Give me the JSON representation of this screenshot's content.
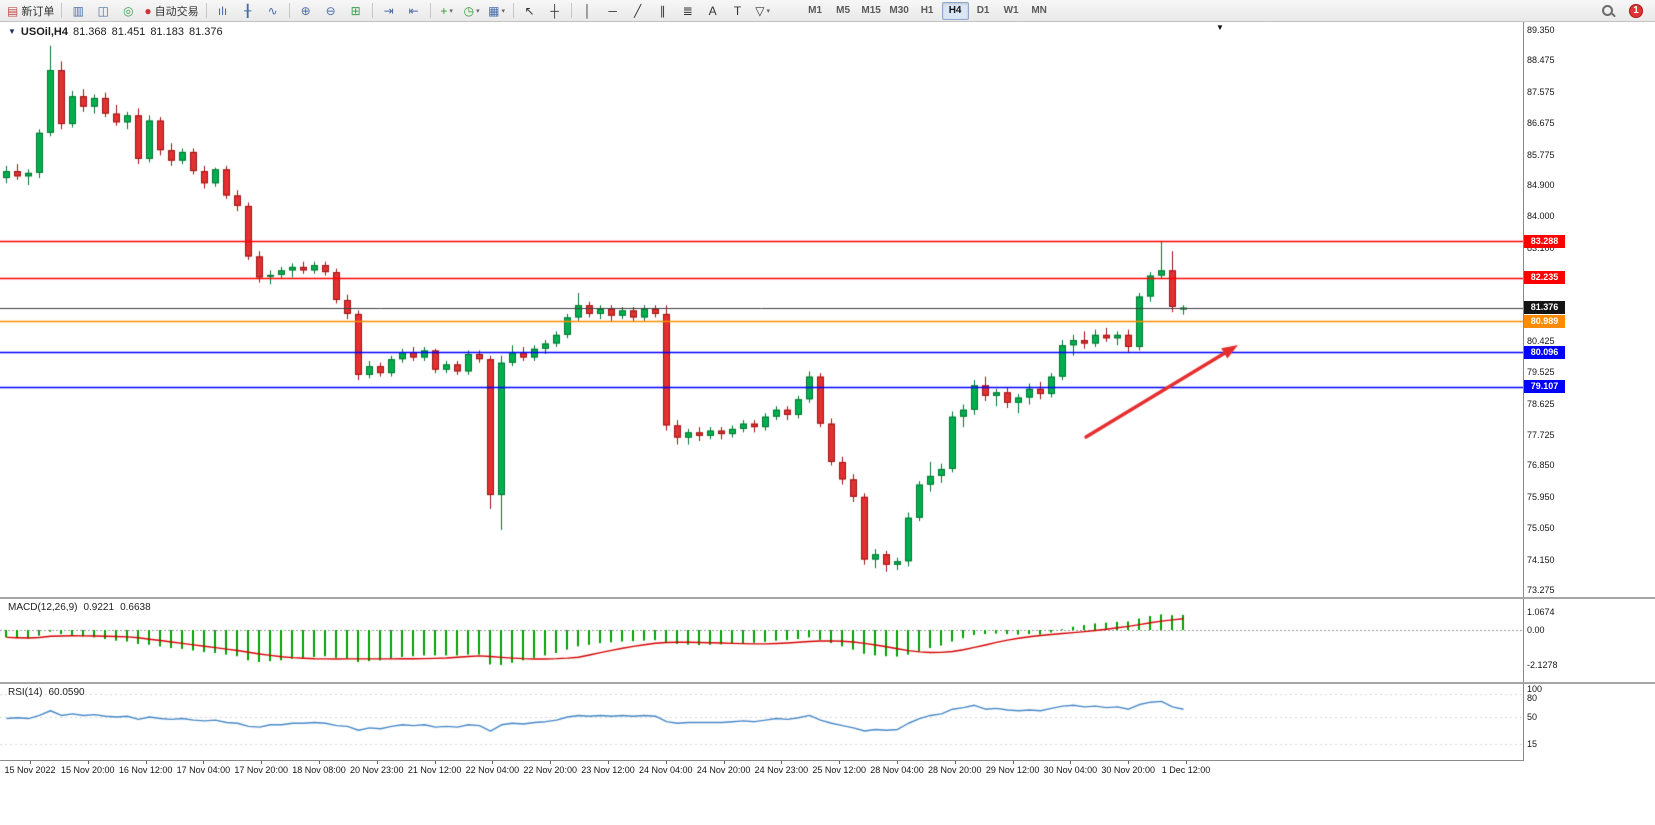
{
  "icons": {
    "collapse": "▼",
    "end_marker": "▼",
    "caret": "▾"
  },
  "toolbar": {
    "notification_count": "1",
    "timeframes": [
      "M1",
      "M5",
      "M15",
      "M30",
      "H1",
      "H4",
      "D1",
      "W1",
      "MN"
    ],
    "active_timeframe": "H4",
    "items": [
      {
        "name": "new-order-button",
        "icon": "new-order-icon",
        "glyph": "▤",
        "color": "#c0504d",
        "label": "新订单"
      },
      {
        "sep": true
      },
      {
        "name": "market-watch-button",
        "icon": "market-watch-icon",
        "glyph": "▥",
        "color": "#4a6da7"
      },
      {
        "name": "data-window-button",
        "icon": "data-window-icon",
        "glyph": "◫",
        "color": "#4a6da7"
      },
      {
        "name": "navigator-button",
        "icon": "navigator-icon",
        "glyph": "◎",
        "color": "#3f9d4f"
      },
      {
        "name": "autotrading-button",
        "icon": "autotrading-icon",
        "glyph": "●",
        "color": "#cf3333",
        "label": "自动交易"
      },
      {
        "sep": true
      },
      {
        "name": "bar-chart-button",
        "icon": "bar-chart-icon",
        "glyph": "ılı",
        "color": "#4a6da7"
      },
      {
        "name": "candlestick-button",
        "icon": "candlestick-icon",
        "glyph": "╂",
        "color": "#4a6da7"
      },
      {
        "name": "line-chart-button",
        "icon": "line-chart-icon",
        "glyph": "∿",
        "color": "#4a6da7"
      },
      {
        "sep": true
      },
      {
        "name": "zoom-in-button",
        "icon": "zoom-in-icon",
        "glyph": "⊕",
        "color": "#4a6da7"
      },
      {
        "name": "zoom-out-button",
        "icon": "zoom-out-icon",
        "glyph": "⊖",
        "color": "#4a6da7"
      },
      {
        "name": "tile-windows-button",
        "icon": "tile-windows-icon",
        "glyph": "⊞",
        "color": "#3f9d4f"
      },
      {
        "sep": true
      },
      {
        "name": "auto-scroll-button",
        "icon": "auto-scroll-icon",
        "glyph": "⇥",
        "color": "#4a6da7"
      },
      {
        "name": "chart-shift-button",
        "icon": "chart-shift-icon",
        "glyph": "⇤",
        "color": "#4a6da7"
      },
      {
        "sep": true
      },
      {
        "name": "indicators-button",
        "icon": "indicators-icon",
        "glyph": "+",
        "color": "#2f9e2f",
        "dropdown": true
      },
      {
        "name": "periods-button",
        "icon": "periods-icon",
        "glyph": "◷",
        "color": "#2f9e2f",
        "dropdown": true
      },
      {
        "name": "templates-button",
        "icon": "templates-icon",
        "glyph": "▦",
        "color": "#4a6da7",
        "dropdown": true
      },
      {
        "sep": true
      },
      {
        "name": "cursor-button",
        "icon": "cursor-icon",
        "glyph": "↖",
        "color": "#333333"
      },
      {
        "name": "crosshair-button",
        "icon": "crosshair-icon",
        "glyph": "┼",
        "color": "#333333"
      },
      {
        "sep": true
      },
      {
        "name": "vertical-line-button",
        "icon": "vertical-line-icon",
        "glyph": "│",
        "color": "#333333"
      },
      {
        "name": "horizontal-line-button",
        "icon": "horizontal-line-icon",
        "glyph": "─",
        "color": "#333333"
      },
      {
        "name": "trendline-button",
        "icon": "trendline-icon",
        "glyph": "╱",
        "color": "#333333"
      },
      {
        "name": "channel-button",
        "icon": "channel-icon",
        "glyph": "∥",
        "color": "#333333"
      },
      {
        "name": "fibonacci-button",
        "icon": "fibonacci-icon",
        "glyph": "≣",
        "color": "#333333"
      },
      {
        "name": "text-button",
        "icon": "text-icon",
        "glyph": "A",
        "color": "#333333"
      },
      {
        "name": "text-label-button",
        "icon": "text-label-icon",
        "glyph": "T",
        "color": "#333333"
      },
      {
        "name": "arrows-button",
        "icon": "arrows-icon",
        "glyph": "▽",
        "color": "#333333",
        "dropdown": true
      }
    ]
  },
  "chart": {
    "header": {
      "symbol": "USOil,H4",
      "open": "81.368",
      "high": "81.451",
      "low": "81.183",
      "close": "81.376"
    },
    "price_scale_labels": [
      "89.350",
      "88.475",
      "87.575",
      "86.675",
      "85.775",
      "84.900",
      "84.000",
      "83.100",
      "82.200",
      "81.300",
      "80.425",
      "79.525",
      "78.625",
      "77.725",
      "76.850",
      "75.950",
      "75.050",
      "74.150",
      "73.275"
    ],
    "levels": [
      {
        "price": 83.288,
        "label": "83.288",
        "color": "#ff0000"
      },
      {
        "price": 82.235,
        "label": "82.235",
        "color": "#ff0000"
      },
      {
        "price": 80.989,
        "label": "80.989",
        "color": "#ff8c00"
      },
      {
        "price": 80.096,
        "label": "80.096",
        "color": "#0000ff"
      },
      {
        "price": 79.107,
        "label": "79.107",
        "color": "#0000ff"
      }
    ],
    "current_price": {
      "price": 81.376,
      "label": "81.376",
      "color": "#141414"
    },
    "colors": {
      "bull": "#00b050",
      "bull_edge": "#00752f",
      "bear": "#e33030",
      "bear_edge": "#9c1414",
      "macd_histogram": "#00a000",
      "macd_signal": "#d40000",
      "rsi_line": "#4788c7",
      "arrow": "#e62e2e"
    },
    "arrow": {
      "from": [
        1086,
        415
      ],
      "to": [
        1238,
        323
      ]
    }
  },
  "chart_data": {
    "type": "candlestick",
    "symbol": "USOil",
    "timeframe": "H4",
    "price_range": [
      73.275,
      89.35
    ],
    "x_labels": [
      "15 Nov 2022",
      "15 Nov 20:00",
      "16 Nov 12:00",
      "17 Nov 04:00",
      "17 Nov 20:00",
      "18 Nov 08:00",
      "20 Nov 23:00",
      "21 Nov 12:00",
      "22 Nov 04:00",
      "22 Nov 20:00",
      "23 Nov 12:00",
      "24 Nov 04:00",
      "24 Nov 20:00",
      "24 Nov 23:00",
      "25 Nov 12:00",
      "28 Nov 04:00",
      "28 Nov 20:00",
      "29 Nov 12:00",
      "30 Nov 04:00",
      "30 Nov 20:00",
      "1 Dec 12:00"
    ],
    "ohlc": [
      [
        85.1,
        85.45,
        84.95,
        85.3
      ],
      [
        85.3,
        85.5,
        85.05,
        85.15
      ],
      [
        85.15,
        85.35,
        84.9,
        85.25
      ],
      [
        85.25,
        86.5,
        85.1,
        86.4
      ],
      [
        86.4,
        88.9,
        86.3,
        88.2
      ],
      [
        88.2,
        88.45,
        86.5,
        86.65
      ],
      [
        86.65,
        87.6,
        86.55,
        87.45
      ],
      [
        87.45,
        87.65,
        87.0,
        87.15
      ],
      [
        87.15,
        87.5,
        86.95,
        87.4
      ],
      [
        87.4,
        87.55,
        86.85,
        86.95
      ],
      [
        86.95,
        87.2,
        86.6,
        86.7
      ],
      [
        86.7,
        87.0,
        86.5,
        86.9
      ],
      [
        86.9,
        87.1,
        85.5,
        85.65
      ],
      [
        85.65,
        86.9,
        85.55,
        86.75
      ],
      [
        86.75,
        86.85,
        85.75,
        85.9
      ],
      [
        85.9,
        86.1,
        85.45,
        85.6
      ],
      [
        85.6,
        85.95,
        85.5,
        85.85
      ],
      [
        85.85,
        85.95,
        85.2,
        85.3
      ],
      [
        85.3,
        85.45,
        84.8,
        84.95
      ],
      [
        84.95,
        85.4,
        84.85,
        85.35
      ],
      [
        85.35,
        85.45,
        84.5,
        84.6
      ],
      [
        84.6,
        84.75,
        84.15,
        84.3
      ],
      [
        84.3,
        84.4,
        82.75,
        82.85
      ],
      [
        82.85,
        83.0,
        82.1,
        82.25
      ],
      [
        82.3,
        82.45,
        82.05,
        82.32
      ],
      [
        82.32,
        82.55,
        82.2,
        82.45
      ],
      [
        82.45,
        82.65,
        82.25,
        82.55
      ],
      [
        82.55,
        82.7,
        82.35,
        82.45
      ],
      [
        82.45,
        82.7,
        82.35,
        82.6
      ],
      [
        82.6,
        82.7,
        82.3,
        82.4
      ],
      [
        82.4,
        82.5,
        81.5,
        81.6
      ],
      [
        81.6,
        81.75,
        81.05,
        81.2
      ],
      [
        81.2,
        81.3,
        79.3,
        79.45
      ],
      [
        79.45,
        79.85,
        79.35,
        79.7
      ],
      [
        79.7,
        79.8,
        79.4,
        79.5
      ],
      [
        79.5,
        80.0,
        79.4,
        79.9
      ],
      [
        79.9,
        80.2,
        79.8,
        80.1
      ],
      [
        80.1,
        80.25,
        79.85,
        79.95
      ],
      [
        79.95,
        80.25,
        79.85,
        80.15
      ],
      [
        80.15,
        80.2,
        79.5,
        79.6
      ],
      [
        79.6,
        79.85,
        79.5,
        79.75
      ],
      [
        79.75,
        79.85,
        79.45,
        79.55
      ],
      [
        79.55,
        80.15,
        79.45,
        80.05
      ],
      [
        80.05,
        80.15,
        79.8,
        79.9
      ],
      [
        79.9,
        80.0,
        75.6,
        76.0
      ],
      [
        76.0,
        80.0,
        75.0,
        79.8
      ],
      [
        79.8,
        80.3,
        79.7,
        80.1
      ],
      [
        80.1,
        80.25,
        79.85,
        79.95
      ],
      [
        79.95,
        80.3,
        79.85,
        80.2
      ],
      [
        80.2,
        80.45,
        80.05,
        80.35
      ],
      [
        80.35,
        80.7,
        80.25,
        80.6
      ],
      [
        80.6,
        81.2,
        80.5,
        81.1
      ],
      [
        81.1,
        81.8,
        81.0,
        81.45
      ],
      [
        81.45,
        81.55,
        81.1,
        81.2
      ],
      [
        81.2,
        81.45,
        81.05,
        81.35
      ],
      [
        81.35,
        81.45,
        81.0,
        81.15
      ],
      [
        81.15,
        81.4,
        81.05,
        81.3
      ],
      [
        81.3,
        81.4,
        81.0,
        81.1
      ],
      [
        81.1,
        81.45,
        81.0,
        81.35
      ],
      [
        81.35,
        81.45,
        81.1,
        81.2
      ],
      [
        81.2,
        81.45,
        77.85,
        78.0
      ],
      [
        78.0,
        78.15,
        77.45,
        77.65
      ],
      [
        77.65,
        77.9,
        77.45,
        77.8
      ],
      [
        77.8,
        77.95,
        77.55,
        77.7
      ],
      [
        77.7,
        77.95,
        77.6,
        77.85
      ],
      [
        77.85,
        77.95,
        77.6,
        77.75
      ],
      [
        77.75,
        78.0,
        77.65,
        77.9
      ],
      [
        77.9,
        78.15,
        77.8,
        78.05
      ],
      [
        78.05,
        78.15,
        77.8,
        77.95
      ],
      [
        77.95,
        78.35,
        77.85,
        78.25
      ],
      [
        78.25,
        78.55,
        78.15,
        78.45
      ],
      [
        78.45,
        78.55,
        78.15,
        78.3
      ],
      [
        78.3,
        78.85,
        78.2,
        78.75
      ],
      [
        78.75,
        79.55,
        78.65,
        79.4
      ],
      [
        79.4,
        79.5,
        77.95,
        78.05
      ],
      [
        78.05,
        78.2,
        76.85,
        76.95
      ],
      [
        76.95,
        77.1,
        76.3,
        76.45
      ],
      [
        76.45,
        76.6,
        75.8,
        75.95
      ],
      [
        75.95,
        76.05,
        74.0,
        74.15
      ],
      [
        74.15,
        74.45,
        73.9,
        74.3
      ],
      [
        74.3,
        74.4,
        73.8,
        74.0
      ],
      [
        74.0,
        74.2,
        73.85,
        74.1
      ],
      [
        74.1,
        75.5,
        73.95,
        75.35
      ],
      [
        75.35,
        76.4,
        75.25,
        76.3
      ],
      [
        76.3,
        76.95,
        76.1,
        76.55
      ],
      [
        76.55,
        76.9,
        76.35,
        76.75
      ],
      [
        76.75,
        78.4,
        76.65,
        78.25
      ],
      [
        78.25,
        78.6,
        77.95,
        78.45
      ],
      [
        78.45,
        79.3,
        78.3,
        79.15
      ],
      [
        79.15,
        79.4,
        78.7,
        78.85
      ],
      [
        78.85,
        79.05,
        78.55,
        78.95
      ],
      [
        78.95,
        79.1,
        78.5,
        78.65
      ],
      [
        78.65,
        78.9,
        78.35,
        78.8
      ],
      [
        78.8,
        79.2,
        78.6,
        79.05
      ],
      [
        79.05,
        79.25,
        78.75,
        78.9
      ],
      [
        78.9,
        79.5,
        78.8,
        79.4
      ],
      [
        79.4,
        80.45,
        79.3,
        80.3
      ],
      [
        80.3,
        80.6,
        80.0,
        80.45
      ],
      [
        80.45,
        80.7,
        80.2,
        80.35
      ],
      [
        80.35,
        80.75,
        80.25,
        80.6
      ],
      [
        80.6,
        80.8,
        80.4,
        80.5
      ],
      [
        80.5,
        80.7,
        80.3,
        80.6
      ],
      [
        80.6,
        80.75,
        80.1,
        80.25
      ],
      [
        80.25,
        81.8,
        80.15,
        81.7
      ],
      [
        81.7,
        82.4,
        81.55,
        82.3
      ],
      [
        82.3,
        83.29,
        82.2,
        82.45
      ],
      [
        82.45,
        83.0,
        81.25,
        81.4
      ],
      [
        81.37,
        81.45,
        81.18,
        81.38
      ]
    ],
    "macd": {
      "title": "MACD(12,26,9)",
      "main_value": "0.9221",
      "signal_value": "0.6638",
      "scale_labels": [
        "1.0674",
        "0.00",
        "-2.1278"
      ],
      "histogram": [
        -0.45,
        -0.5,
        -0.52,
        -0.35,
        -0.1,
        -0.25,
        -0.3,
        -0.4,
        -0.45,
        -0.55,
        -0.65,
        -0.7,
        -0.85,
        -0.9,
        -1.0,
        -1.1,
        -1.15,
        -1.25,
        -1.35,
        -1.4,
        -1.5,
        -1.6,
        -1.85,
        -1.95,
        -1.9,
        -1.85,
        -1.75,
        -1.7,
        -1.65,
        -1.6,
        -1.7,
        -1.75,
        -1.95,
        -1.9,
        -1.85,
        -1.75,
        -1.65,
        -1.6,
        -1.55,
        -1.55,
        -1.55,
        -1.55,
        -1.5,
        -1.5,
        -2.1,
        -2.13,
        -2.0,
        -1.85,
        -1.7,
        -1.55,
        -1.4,
        -1.2,
        -1.0,
        -0.9,
        -0.8,
        -0.75,
        -0.7,
        -0.68,
        -0.65,
        -0.62,
        -0.75,
        -0.85,
        -0.9,
        -0.92,
        -0.9,
        -0.88,
        -0.85,
        -0.8,
        -0.78,
        -0.72,
        -0.65,
        -0.62,
        -0.55,
        -0.45,
        -0.6,
        -0.8,
        -1.0,
        -1.2,
        -1.45,
        -1.55,
        -1.6,
        -1.62,
        -1.5,
        -1.3,
        -1.1,
        -0.95,
        -0.7,
        -0.5,
        -0.3,
        -0.25,
        -0.22,
        -0.25,
        -0.28,
        -0.25,
        -0.28,
        -0.15,
        0.05,
        0.2,
        0.3,
        0.4,
        0.45,
        0.5,
        0.52,
        0.7,
        0.85,
        0.95,
        0.9,
        0.92
      ]
    },
    "rsi": {
      "title": "RSI(14)",
      "value": "60.0590",
      "scale_labels": [
        "100",
        "80",
        "50",
        "15"
      ],
      "levels": [
        80,
        50,
        15
      ],
      "values": [
        48,
        49,
        48,
        52,
        58,
        52,
        54,
        52,
        53,
        51,
        50,
        51,
        47,
        50,
        48,
        47,
        48,
        46,
        45,
        46,
        43,
        42,
        38,
        37,
        40,
        40,
        42,
        42,
        43,
        42,
        39,
        38,
        33,
        36,
        35,
        38,
        40,
        39,
        40,
        37,
        38,
        37,
        40,
        39,
        32,
        40,
        42,
        41,
        43,
        44,
        46,
        50,
        52,
        51,
        52,
        51,
        52,
        51,
        52,
        51,
        44,
        42,
        43,
        43,
        43,
        43,
        44,
        45,
        44,
        46,
        48,
        47,
        49,
        52,
        46,
        42,
        39,
        36,
        32,
        34,
        33,
        34,
        42,
        48,
        52,
        54,
        60,
        62,
        65,
        60,
        61,
        59,
        58,
        59,
        58,
        61,
        64,
        65,
        63,
        64,
        62,
        63,
        60,
        66,
        69,
        70,
        63,
        60
      ]
    }
  }
}
